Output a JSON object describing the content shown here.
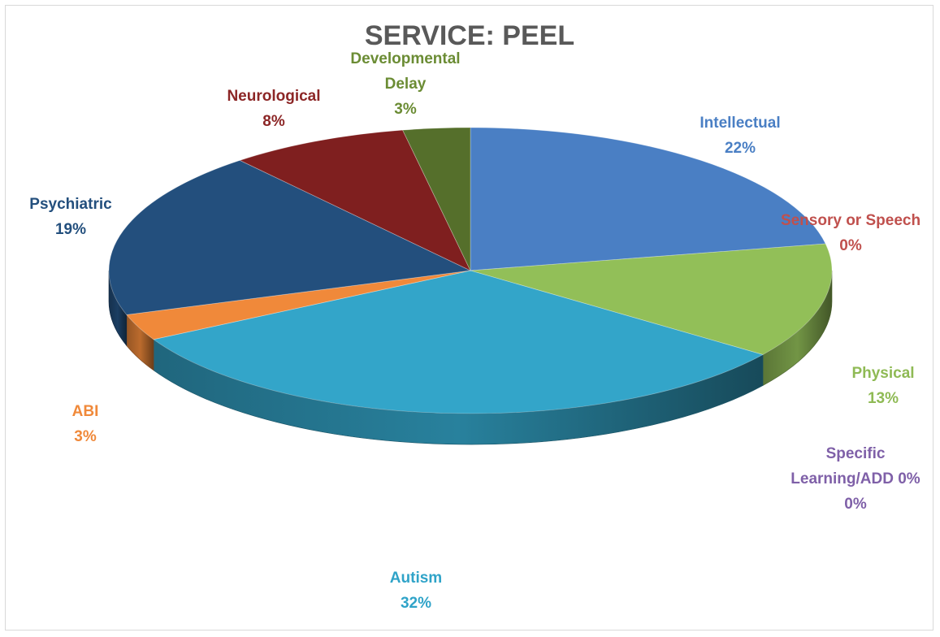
{
  "chart_data": {
    "type": "pie",
    "title": "SERVICE: PEEL",
    "three_d": true,
    "slices": [
      {
        "name": "Intellectual",
        "value": 22,
        "pct_label": "22%",
        "color": "#4a7fc4",
        "text_color": "#4a7fc4"
      },
      {
        "name": "Sensory or Speech",
        "value": 0,
        "pct_label": "0%",
        "color": "#c0504d",
        "text_color": "#c0504d"
      },
      {
        "name": "Physical",
        "value": 13,
        "pct_label": "13%",
        "color": "#92bf58",
        "text_color": "#8fba55"
      },
      {
        "name": "Specific Learning/ADD 0%",
        "value": 0,
        "pct_label": "0%",
        "color": "#7f60a8",
        "text_color": "#7f60a8"
      },
      {
        "name": "Autism",
        "value": 32,
        "pct_label": "32%",
        "color": "#33a5c9",
        "text_color": "#2fa3c8"
      },
      {
        "name": "ABI",
        "value": 3,
        "pct_label": "3%",
        "color": "#f0893a",
        "text_color": "#f0893a"
      },
      {
        "name": "Psychiatric",
        "value": 19,
        "pct_label": "19%",
        "color": "#234f7d",
        "text_color": "#234f7d"
      },
      {
        "name": "Neurological",
        "value": 8,
        "pct_label": "8%",
        "color": "#7f1f1f",
        "text_color": "#8c2626"
      },
      {
        "name": "Developmental Delay",
        "value": 3,
        "pct_label": "3%",
        "color": "#556f2b",
        "text_color": "#6b8c34"
      }
    ]
  }
}
